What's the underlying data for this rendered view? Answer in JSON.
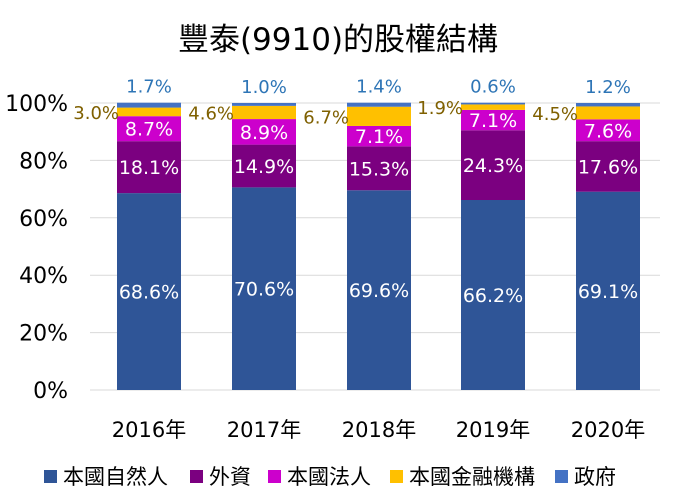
{
  "chart_data": {
    "type": "bar",
    "stacked": true,
    "title": "豐泰(9910)的股權結構",
    "xlabel": "",
    "ylabel": "",
    "ylim": [
      0,
      100
    ],
    "y_ticks": [
      "0%",
      "20%",
      "40%",
      "60%",
      "80%",
      "100%"
    ],
    "y_tick_values": [
      0,
      20,
      40,
      60,
      80,
      100
    ],
    "grid": true,
    "legend_position": "bottom",
    "categories": [
      "2016年",
      "2017年",
      "2018年",
      "2019年",
      "2020年"
    ],
    "series": [
      {
        "name": "本國自然人",
        "color": "#2F5597",
        "label_color": "#FFFFFF",
        "label_position": "inside",
        "values": [
          68.6,
          70.6,
          69.6,
          66.2,
          69.1
        ],
        "labels": [
          "68.6%",
          "70.6%",
          "69.6%",
          "66.2%",
          "69.1%"
        ]
      },
      {
        "name": "外資",
        "color": "#7B0080",
        "label_color": "#FFFFFF",
        "label_position": "inside",
        "values": [
          18.1,
          14.9,
          15.3,
          24.3,
          17.6
        ],
        "labels": [
          "18.1%",
          "14.9%",
          "15.3%",
          "24.3%",
          "17.6%"
        ]
      },
      {
        "name": "本國法人",
        "color": "#CC00CC",
        "label_color": "#FFFFFF",
        "label_position": "inside",
        "values": [
          8.7,
          8.9,
          7.1,
          7.1,
          7.6
        ],
        "labels": [
          "8.7%",
          "8.9%",
          "7.1%",
          "7.1%",
          "7.6%"
        ]
      },
      {
        "name": "本國金融機構",
        "color": "#FFC000",
        "label_color": "#7F6000",
        "label_position": "left",
        "values": [
          3.0,
          4.6,
          6.7,
          1.9,
          4.5
        ],
        "labels": [
          "3.0%",
          "4.6%",
          "6.7%",
          "1.9%",
          "4.5%"
        ]
      },
      {
        "name": "政府",
        "color": "#4472C4",
        "label_color": "#2E75B6",
        "label_position": "above",
        "values": [
          1.7,
          1.0,
          1.4,
          0.6,
          1.2
        ],
        "labels": [
          "1.7%",
          "1.0%",
          "1.4%",
          "0.6%",
          "1.2%"
        ]
      }
    ]
  }
}
